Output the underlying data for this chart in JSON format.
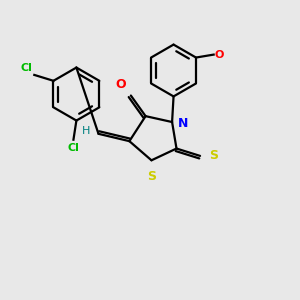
{
  "bg_color": "#e8e8e8",
  "bond_color": "#000000",
  "N_color": "#0000ff",
  "O_color": "#ff0000",
  "S_color": "#cccc00",
  "Cl_color": "#00bb00",
  "H_color": "#008080",
  "lw": 1.6,
  "xlim": [
    0,
    10
  ],
  "ylim": [
    0,
    10
  ]
}
